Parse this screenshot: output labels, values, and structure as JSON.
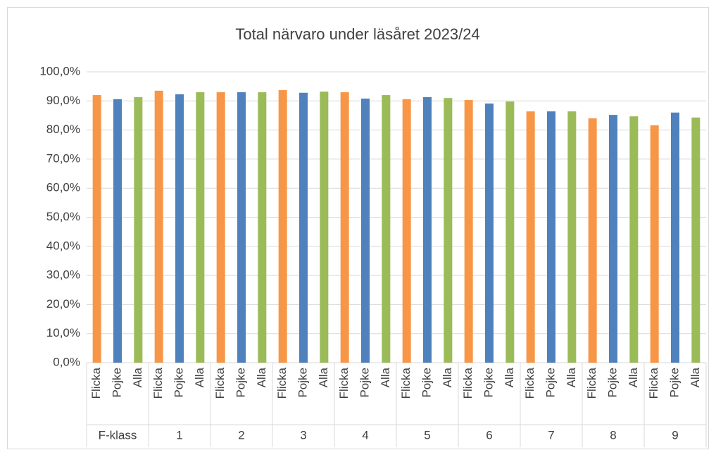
{
  "chart_data": {
    "type": "bar",
    "title": "Total närvaro under läsåret 2023/24",
    "groups": [
      "F-klass",
      "1",
      "2",
      "3",
      "4",
      "5",
      "6",
      "7",
      "8",
      "9"
    ],
    "series": [
      {
        "name": "Flicka",
        "color": "#f79646",
        "values": [
          92.0,
          93.5,
          93.0,
          93.7,
          93.0,
          90.6,
          90.3,
          86.4,
          84.0,
          81.6
        ]
      },
      {
        "name": "Pojke",
        "color": "#4f81bd",
        "values": [
          90.6,
          92.3,
          93.0,
          92.8,
          90.8,
          91.3,
          89.1,
          86.4,
          85.2,
          86.0
        ]
      },
      {
        "name": "Alla",
        "color": "#9bbb59",
        "values": [
          91.3,
          93.0,
          93.0,
          93.2,
          92.0,
          91.0,
          89.8,
          86.4,
          84.7,
          84.3
        ]
      }
    ],
    "ylim": [
      0,
      100
    ],
    "yticks": [
      {
        "value": 0,
        "label": "0,0%"
      },
      {
        "value": 10,
        "label": "10,0%"
      },
      {
        "value": 20,
        "label": "20,0%"
      },
      {
        "value": 30,
        "label": "30,0%"
      },
      {
        "value": 40,
        "label": "40,0%"
      },
      {
        "value": 50,
        "label": "50,0%"
      },
      {
        "value": 60,
        "label": "60,0%"
      },
      {
        "value": 70,
        "label": "70,0%"
      },
      {
        "value": 80,
        "label": "80,0%"
      },
      {
        "value": 90,
        "label": "90,0%"
      },
      {
        "value": 100,
        "label": "100,0%"
      }
    ],
    "grid": true
  }
}
